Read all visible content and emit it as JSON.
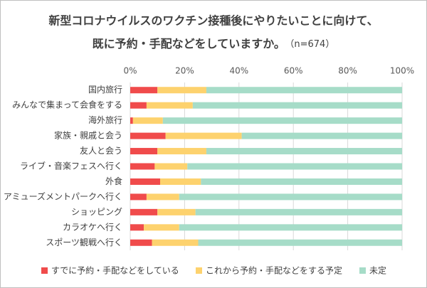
{
  "chart_data": {
    "type": "stacked-bar-horizontal",
    "title": [
      "新型コロナウイルスのワクチン接種後にやりたいことに向けて、",
      "既に予約・手配などをしていますか。"
    ],
    "note": "（n=674）",
    "categories": [
      "国内旅行",
      "みんなで集まって会食をする",
      "海外旅行",
      "家族・親戚と会う",
      "友人と会う",
      "ライブ・音楽フェスへ行く",
      "外食",
      "アミューズメントパークへ行く",
      "ショッピング",
      "カラオケへ行く",
      "スポーツ観戦へ行く"
    ],
    "series": [
      {
        "name": "すでに予約・手配などをしている",
        "color": "#f04b4b",
        "values": [
          10,
          6,
          1,
          13,
          10,
          9,
          11,
          6,
          10,
          5,
          8
        ]
      },
      {
        "name": "これから予約・手配などをする予定",
        "color": "#fdd26e",
        "values": [
          18,
          17,
          11,
          28,
          18,
          12,
          15,
          12,
          14,
          13,
          17
        ]
      },
      {
        "name": "未定",
        "color": "#a6dcc8",
        "values": [
          72,
          77,
          88,
          59,
          72,
          79,
          74,
          82,
          76,
          82,
          75
        ]
      }
    ],
    "xlim": [
      0,
      100
    ],
    "xticks": [
      {
        "value": 0,
        "label": "0%"
      },
      {
        "value": 20,
        "label": "20%"
      },
      {
        "value": 40,
        "label": "40%"
      },
      {
        "value": 60,
        "label": "60%"
      },
      {
        "value": 80,
        "label": "80%"
      },
      {
        "value": 100,
        "label": "100%"
      }
    ],
    "grid": true
  }
}
